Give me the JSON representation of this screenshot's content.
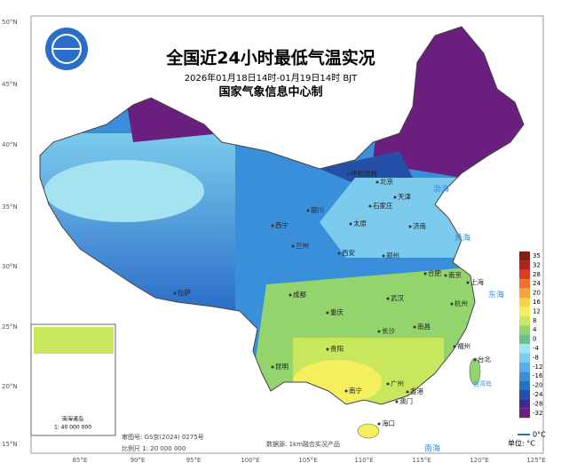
{
  "header": {
    "title": "全国近24小时最低气温实况",
    "subtitle": "2026年01月18日14时-01月19日14时 BJT",
    "issuer": "国家气象信息中心制"
  },
  "axes": {
    "latitudes": [
      "50°N",
      "45°N",
      "40°N",
      "35°N",
      "30°N",
      "25°N",
      "20°N",
      "15°N"
    ],
    "longitudes": [
      "85°E",
      "90°E",
      "95°E",
      "100°E",
      "105°E",
      "110°E",
      "115°E",
      "120°E",
      "125°E"
    ]
  },
  "legend": {
    "ticks": [
      "35",
      "32",
      "28",
      "24",
      "20",
      "16",
      "12",
      "8",
      "4",
      "0",
      "-4",
      "-8",
      "-12",
      "-16",
      "-20",
      "-24",
      "-28",
      "-32"
    ],
    "zero_label": "0°C",
    "unit": "单位: °C"
  },
  "cities": [
    "北京",
    "天津",
    "石家庄",
    "太原",
    "济南",
    "银川",
    "呼和浩特",
    "西宁",
    "兰州",
    "西安",
    "郑州",
    "合肥",
    "南京",
    "上海",
    "杭州",
    "武汉",
    "成都",
    "重庆",
    "长沙",
    "南昌",
    "福州",
    "贵阳",
    "昆明",
    "南宁",
    "广州",
    "香港",
    "澳门",
    "海口",
    "台北",
    "拉萨"
  ],
  "seas": [
    "渤海",
    "黄海",
    "东海",
    "南海",
    "台湾岛"
  ],
  "inset": {
    "title": "南海诸岛",
    "scale": "1: 40 000 000"
  },
  "footer": {
    "map_number": "审图号: GS京(2024) 0275号",
    "scale": "比例尺 1: 20 000 000",
    "source": "数据源: 1km融合实况产品"
  }
}
